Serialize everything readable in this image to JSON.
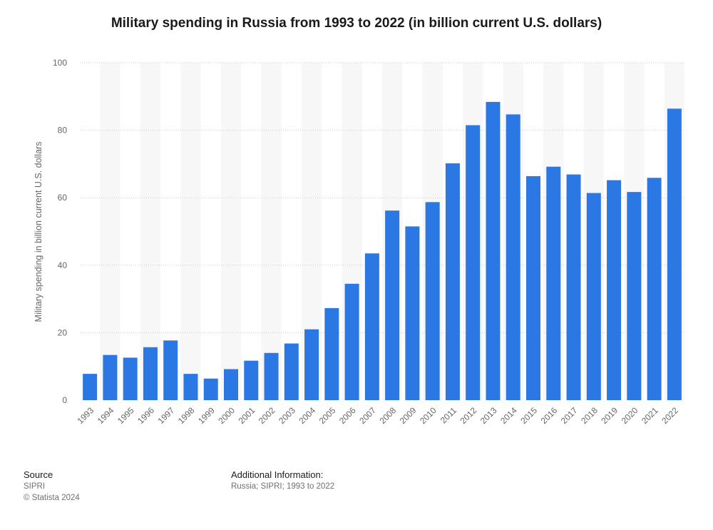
{
  "title": "Military spending in Russia from 1993 to 2022 (in billion current U.S. dollars)",
  "footer": {
    "source_heading": "Source",
    "source_name": "SIPRI",
    "copyright": "© Statista 2024",
    "additional_heading": "Additional Information:",
    "additional_text": "Russia; SIPRI; 1993 to 2022"
  },
  "colors": {
    "bar": "#2b78e4",
    "stripe": "#f7f7f7",
    "grid": "#cccccc",
    "axis_text": "#666666"
  },
  "chart_data": {
    "type": "bar",
    "title": "Military spending in Russia from 1993 to 2022 (in billion current U.S. dollars)",
    "xlabel": "",
    "ylabel": "Military spending in billion current U.S. dollars",
    "ylim": [
      0,
      100
    ],
    "yticks": [
      0,
      20,
      40,
      60,
      80,
      100
    ],
    "grid": true,
    "categories": [
      "1993",
      "1994",
      "1995",
      "1996",
      "1997",
      "1998",
      "1999",
      "2000",
      "2001",
      "2002",
      "2003",
      "2004",
      "2005",
      "2006",
      "2007",
      "2008",
      "2009",
      "2010",
      "2011",
      "2012",
      "2013",
      "2014",
      "2015",
      "2016",
      "2017",
      "2018",
      "2019",
      "2020",
      "2021",
      "2022"
    ],
    "values": [
      7.8,
      13.4,
      12.6,
      15.7,
      17.7,
      7.8,
      6.4,
      9.2,
      11.7,
      14.0,
      16.8,
      21.0,
      27.3,
      34.5,
      43.5,
      56.2,
      51.5,
      58.7,
      70.2,
      81.5,
      88.4,
      84.7,
      66.4,
      69.2,
      66.9,
      61.4,
      65.2,
      61.7,
      65.9,
      86.4
    ]
  }
}
